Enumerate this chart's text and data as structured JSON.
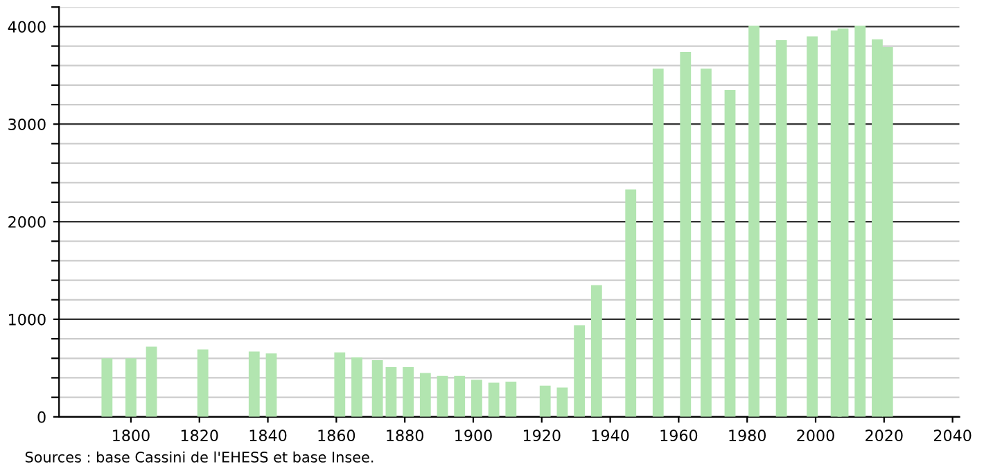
{
  "chart_data": {
    "type": "bar",
    "x": [
      1793,
      1800,
      1806,
      1821,
      1836,
      1841,
      1861,
      1866,
      1872,
      1876,
      1881,
      1886,
      1891,
      1896,
      1901,
      1906,
      1911,
      1921,
      1926,
      1931,
      1936,
      1946,
      1954,
      1962,
      1968,
      1975,
      1982,
      1990,
      1999,
      2006,
      2008,
      2013,
      2018,
      2021
    ],
    "values": [
      600,
      600,
      720,
      690,
      670,
      650,
      660,
      610,
      580,
      510,
      510,
      450,
      420,
      420,
      380,
      350,
      360,
      320,
      300,
      940,
      1350,
      2330,
      3570,
      3740,
      3570,
      3350,
      4010,
      3860,
      3900,
      3960,
      3980,
      4010,
      3870,
      3790
    ],
    "color": "#b2e5b0",
    "xlim": [
      1779,
      2042
    ],
    "xticks": [
      1800,
      1820,
      1840,
      1860,
      1880,
      1900,
      1920,
      1940,
      1960,
      1980,
      2000,
      2020,
      2040
    ],
    "ylim": [
      0,
      4200
    ],
    "yticks": [
      0,
      {
        "value": 200,
        "label": null
      },
      {
        "value": 400,
        "label": null
      },
      {
        "value": 600,
        "label": null
      },
      {
        "value": 800,
        "label": null
      },
      1000,
      {
        "value": 1200,
        "label": null
      },
      {
        "value": 1400,
        "label": null
      },
      {
        "value": 1600,
        "label": null
      },
      {
        "value": 1800,
        "label": null
      },
      2000,
      {
        "value": 2200,
        "label": null
      },
      {
        "value": 2400,
        "label": null
      },
      {
        "value": 2600,
        "label": null
      },
      {
        "value": 2800,
        "label": null
      },
      3000,
      {
        "value": 3200,
        "label": null
      },
      {
        "value": 3400,
        "label": null
      },
      {
        "value": 3600,
        "label": null
      },
      {
        "value": 3800,
        "label": null
      },
      4000,
      {
        "value": 4200,
        "label": null
      }
    ],
    "grid": "y",
    "annotations": [
      "Sources : base Cassini de l'EHESS et base Insee."
    ]
  }
}
